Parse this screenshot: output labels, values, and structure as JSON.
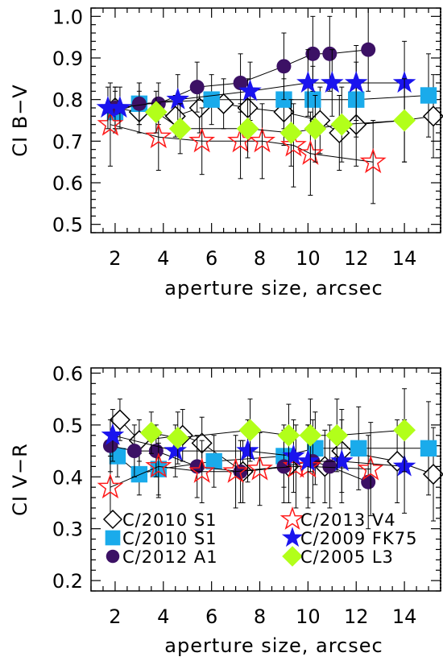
{
  "chart_data": [
    {
      "type": "scatter",
      "title": "",
      "xlabel": "aperture size, arcsec",
      "ylabel": "CI B−V",
      "xlim": [
        1,
        15.5
      ],
      "ylim": [
        0.48,
        1.02
      ],
      "xticks": [
        "2",
        "4",
        "6",
        "8",
        "10",
        "12",
        "14"
      ],
      "yticks": [
        "0.5",
        "0.6",
        "0.7",
        "0.8",
        "0.9",
        "1.0"
      ],
      "series": [
        {
          "marker": "diamond-open",
          "color": "#000000",
          "x": [
            2.0,
            3.0,
            4.5,
            5.5,
            6.5,
            7.5,
            9.0,
            10.5,
            11.3,
            12.0,
            14.0,
            15.2
          ],
          "y": [
            0.78,
            0.77,
            0.76,
            0.78,
            0.79,
            0.78,
            0.77,
            0.75,
            0.72,
            0.74,
            0.75,
            0.76
          ],
          "err": [
            0.05,
            0.05,
            0.05,
            0.06,
            0.06,
            0.07,
            0.08,
            0.08,
            0.09,
            0.1,
            0.1,
            0.1
          ]
        },
        {
          "marker": "square",
          "color": "#1aabeb",
          "x": [
            2.0,
            3.0,
            6.0,
            9.0,
            10.2,
            12.0,
            15.0
          ],
          "y": [
            0.77,
            0.79,
            0.8,
            0.8,
            0.8,
            0.8,
            0.81
          ],
          "err": [
            0.05,
            0.05,
            0.06,
            0.07,
            0.08,
            0.09,
            0.1
          ]
        },
        {
          "marker": "circle",
          "color": "#3c1165",
          "x": [
            2.0,
            3.0,
            3.8,
            5.4,
            7.2,
            9.0,
            10.2,
            10.9,
            12.5
          ],
          "y": [
            0.78,
            0.79,
            0.79,
            0.83,
            0.84,
            0.88,
            0.91,
            0.91,
            0.92
          ],
          "err": [
            0.05,
            0.05,
            0.05,
            0.06,
            0.07,
            0.08,
            0.09,
            0.09,
            0.1
          ]
        },
        {
          "marker": "star-open",
          "color": "#ff1a1a",
          "x": [
            1.8,
            3.8,
            5.6,
            7.2,
            8.1,
            9.4,
            10.1,
            12.7
          ],
          "y": [
            0.74,
            0.71,
            0.7,
            0.7,
            0.7,
            0.69,
            0.67,
            0.65
          ],
          "err": [
            0.1,
            0.08,
            0.08,
            0.09,
            0.09,
            0.1,
            0.1,
            0.1
          ]
        },
        {
          "marker": "star",
          "color": "#1a14ee",
          "x": [
            1.7,
            2.2,
            4.6,
            7.6,
            10.0,
            11.0,
            12.0,
            14.0
          ],
          "y": [
            0.78,
            0.78,
            0.8,
            0.82,
            0.84,
            0.84,
            0.84,
            0.84
          ],
          "err": [
            0.05,
            0.05,
            0.06,
            0.07,
            0.08,
            0.08,
            0.09,
            0.1
          ]
        },
        {
          "marker": "diamond",
          "color": "#b2ff1a",
          "x": [
            3.7,
            4.7,
            7.5,
            9.3,
            10.3,
            11.4,
            14.0
          ],
          "y": [
            0.77,
            0.73,
            0.73,
            0.72,
            0.73,
            0.74,
            0.75
          ],
          "err": [
            0.05,
            0.06,
            0.07,
            0.08,
            0.08,
            0.09,
            0.1
          ]
        }
      ]
    },
    {
      "type": "scatter",
      "title": "",
      "xlabel": "aperture size, arcsec",
      "ylabel": "CI V−R",
      "xlim": [
        1,
        15.5
      ],
      "ylim": [
        0.18,
        0.61
      ],
      "xticks": [
        "2",
        "4",
        "6",
        "8",
        "10",
        "12",
        "14"
      ],
      "yticks": [
        "0.2",
        "0.3",
        "0.4",
        "0.5",
        "0.6"
      ],
      "legend": [
        "C/2010 S1",
        "C/2010 S1",
        "C/2012 A1",
        "C/2013 V4",
        "C/2009 FK75",
        "C/2005 L3"
      ],
      "legend_position": "bottom-left",
      "series": [
        {
          "name": "C/2010 S1",
          "marker": "diamond-open",
          "color": "#000000",
          "x": [
            2.2,
            3.0,
            4.8,
            5.6,
            7.3,
            9.2,
            10.7,
            11.4,
            13.7,
            15.2
          ],
          "y": [
            0.51,
            0.47,
            0.48,
            0.465,
            0.41,
            0.42,
            0.42,
            0.45,
            0.43,
            0.405
          ],
          "err": [
            0.04,
            0.04,
            0.05,
            0.05,
            0.06,
            0.07,
            0.07,
            0.08,
            0.08,
            0.09
          ]
        },
        {
          "name": "C/2010 S1",
          "marker": "square",
          "color": "#1aabeb",
          "x": [
            2.1,
            3.0,
            3.8,
            6.1,
            9.0,
            10.3,
            12.1,
            15.0
          ],
          "y": [
            0.44,
            0.405,
            0.415,
            0.43,
            0.44,
            0.455,
            0.455,
            0.455
          ],
          "err": [
            0.04,
            0.04,
            0.05,
            0.05,
            0.06,
            0.07,
            0.08,
            0.09
          ]
        },
        {
          "name": "C/2012 A1",
          "marker": "circle",
          "color": "#3c1165",
          "x": [
            1.8,
            2.8,
            3.7,
            5.4,
            7.2,
            9.0,
            10.2,
            10.9,
            12.5
          ],
          "y": [
            0.46,
            0.45,
            0.45,
            0.42,
            0.41,
            0.42,
            0.43,
            0.42,
            0.39
          ],
          "err": [
            0.05,
            0.05,
            0.05,
            0.06,
            0.06,
            0.07,
            0.08,
            0.08,
            0.09
          ]
        },
        {
          "name": "C/2013 V4",
          "marker": "star-open",
          "color": "#ff1a1a",
          "x": [
            1.8,
            3.8,
            5.6,
            7.0,
            8.0,
            9.5,
            10.0,
            12.6
          ],
          "y": [
            0.38,
            0.42,
            0.41,
            0.41,
            0.415,
            0.42,
            0.42,
            0.415
          ],
          "err": [
            0.06,
            0.06,
            0.06,
            0.07,
            0.07,
            0.08,
            0.08,
            0.09
          ]
        },
        {
          "name": "C/2009 FK75",
          "marker": "star",
          "color": "#1a14ee",
          "x": [
            1.9,
            4.5,
            7.5,
            9.4,
            10.0,
            11.4,
            14.0
          ],
          "y": [
            0.48,
            0.45,
            0.45,
            0.44,
            0.43,
            0.43,
            0.42
          ],
          "err": [
            0.05,
            0.05,
            0.06,
            0.07,
            0.07,
            0.08,
            0.09
          ]
        },
        {
          "name": "C/2005 L3",
          "marker": "diamond",
          "color": "#b2ff1a",
          "x": [
            3.5,
            4.6,
            7.6,
            9.2,
            10.1,
            11.2,
            14.0
          ],
          "y": [
            0.485,
            0.475,
            0.49,
            0.48,
            0.48,
            0.48,
            0.49
          ],
          "err": [
            0.04,
            0.05,
            0.06,
            0.06,
            0.07,
            0.07,
            0.08
          ]
        }
      ]
    }
  ]
}
